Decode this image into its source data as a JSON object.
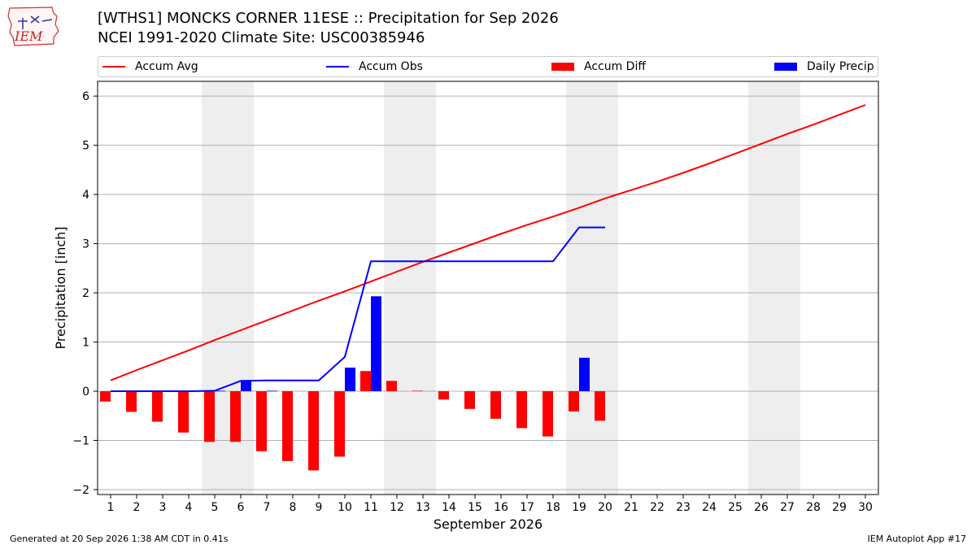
{
  "logo_text": "IEM",
  "title_line1": "[WTHS1] MONCKS CORNER 11ESE :: Precipitation for Sep 2026",
  "title_line2": "NCEI 1991-2020 Climate Site: USC00385946",
  "footer_left": "Generated at 20 Sep 2026 1:38 AM CDT in 0.41s",
  "footer_right": "IEM Autoplot App #17",
  "colors": {
    "avg": "#ff0000",
    "obs": "#0000ff",
    "diff": "#ff0000",
    "daily": "#0000ff",
    "weekend": "#eeeeee"
  },
  "chart_data": {
    "type": "bar",
    "title": "[WTHS1] MONCKS CORNER 11ESE :: Precipitation for Sep 2026",
    "subtitle": "NCEI 1991-2020 Climate Site: USC00385946",
    "xlabel": "September 2026",
    "ylabel": "Precipitation [inch]",
    "ylim": [
      -2.1,
      6.3
    ],
    "xlim": [
      0.5,
      30.5
    ],
    "yticks": [
      -2,
      -1,
      0,
      1,
      2,
      3,
      4,
      5,
      6
    ],
    "grid": "horizontal",
    "legend_placement": "top",
    "days": [
      1,
      2,
      3,
      4,
      5,
      6,
      7,
      8,
      9,
      10,
      11,
      12,
      13,
      14,
      15,
      16,
      17,
      18,
      19,
      20,
      21,
      22,
      23,
      24,
      25,
      26,
      27,
      28,
      29,
      30
    ],
    "weekend_bands": [
      [
        5,
        6
      ],
      [
        12,
        13
      ],
      [
        19,
        20
      ],
      [
        26,
        27
      ]
    ],
    "series": [
      {
        "name": "Accum Avg",
        "type": "line",
        "color": "#ff0000",
        "x": [
          1,
          2,
          3,
          4,
          5,
          6,
          7,
          8,
          9,
          10,
          11,
          12,
          13,
          14,
          15,
          16,
          17,
          18,
          19,
          20,
          21,
          22,
          23,
          24,
          25,
          26,
          27,
          28,
          29,
          30
        ],
        "values": [
          0.22,
          0.43,
          0.63,
          0.83,
          1.04,
          1.24,
          1.44,
          1.64,
          1.84,
          2.03,
          2.23,
          2.43,
          2.63,
          2.82,
          3.01,
          3.2,
          3.38,
          3.55,
          3.73,
          3.92,
          4.09,
          4.26,
          4.44,
          4.63,
          4.83,
          5.03,
          5.23,
          5.42,
          5.62,
          5.82
        ]
      },
      {
        "name": "Accum Obs",
        "type": "line",
        "color": "#0000ff",
        "x": [
          1,
          2,
          3,
          4,
          5,
          6,
          7,
          8,
          9,
          10,
          11,
          12,
          13,
          14,
          15,
          16,
          17,
          18,
          19,
          20
        ],
        "values": [
          0.0,
          0.0,
          0.0,
          0.0,
          0.01,
          0.21,
          0.22,
          0.22,
          0.22,
          0.7,
          2.64,
          2.64,
          2.64,
          2.64,
          2.64,
          2.64,
          2.64,
          2.64,
          3.33,
          3.33
        ]
      },
      {
        "name": "Accum Diff",
        "type": "bar",
        "color": "#ff0000",
        "x": [
          1,
          2,
          3,
          4,
          5,
          6,
          7,
          8,
          9,
          10,
          11,
          12,
          13,
          14,
          15,
          16,
          17,
          18,
          19,
          20
        ],
        "values": [
          -0.21,
          -0.42,
          -0.62,
          -0.84,
          -1.03,
          -1.03,
          -1.22,
          -1.42,
          -1.61,
          -1.33,
          0.41,
          0.21,
          0.01,
          -0.17,
          -0.36,
          -0.56,
          -0.75,
          -0.92,
          -0.41,
          -0.6
        ]
      },
      {
        "name": "Daily Precip",
        "type": "bar",
        "color": "#0000ff",
        "x": [
          1,
          2,
          3,
          4,
          5,
          6,
          7,
          8,
          9,
          10,
          11,
          12,
          13,
          14,
          15,
          16,
          17,
          18,
          19,
          20
        ],
        "values": [
          0,
          0,
          0,
          0,
          0.01,
          0.21,
          0.01,
          0,
          0,
          0.48,
          1.93,
          0,
          0,
          0,
          0,
          0,
          0,
          0,
          0.68,
          0
        ]
      }
    ]
  }
}
